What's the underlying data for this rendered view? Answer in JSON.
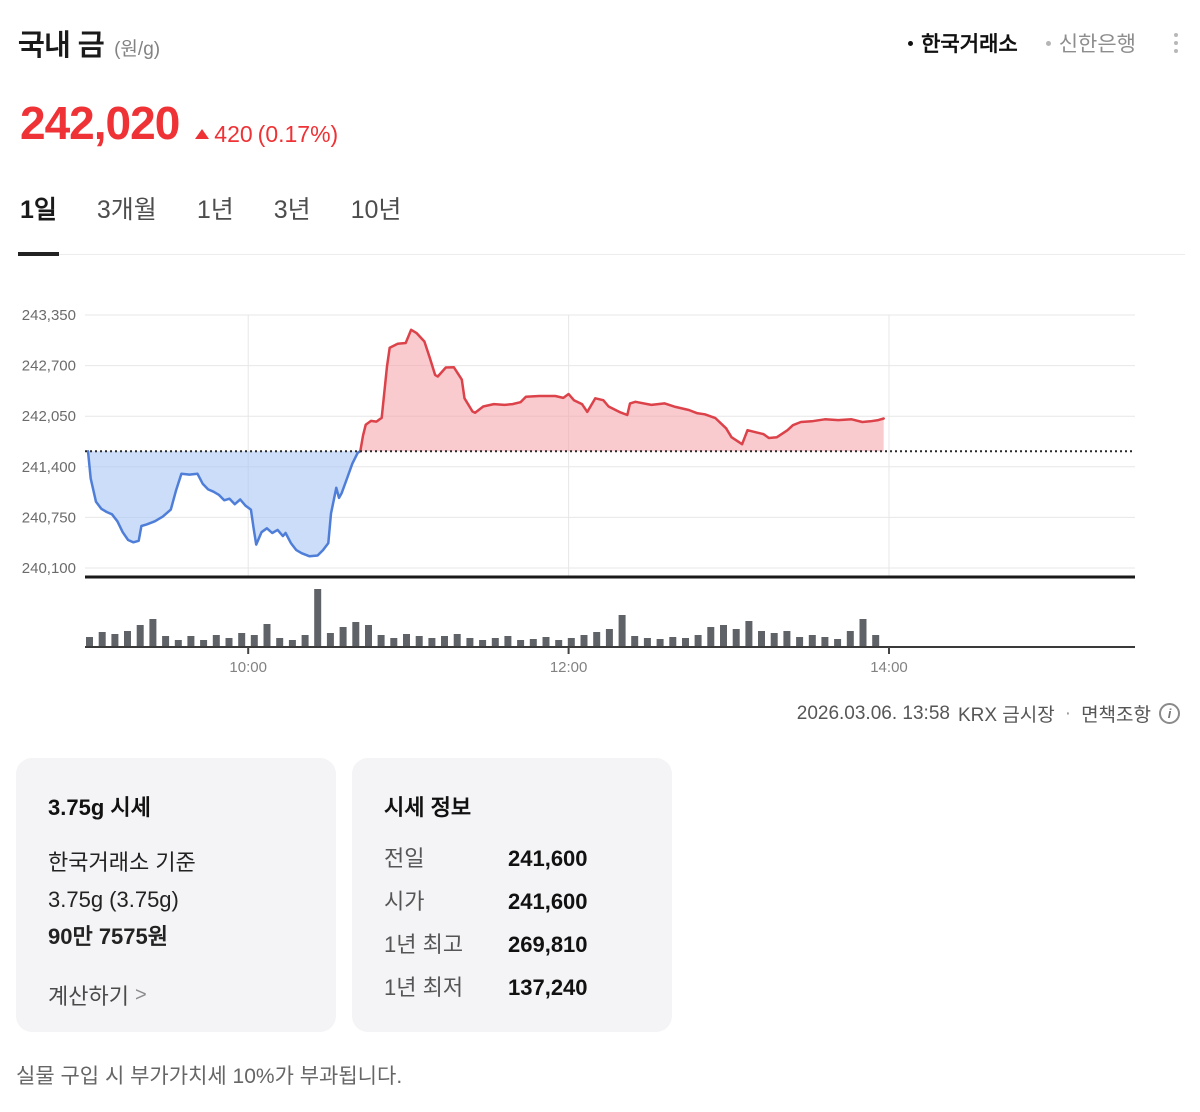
{
  "header": {
    "title": "국내 금",
    "unit": "(원/g)",
    "sources": [
      {
        "label": "한국거래소",
        "active": true
      },
      {
        "label": "신한은행",
        "active": false
      }
    ],
    "more_menu_icon": "kebab-vertical"
  },
  "price": {
    "value": "242,020",
    "direction_icon": "triangle-up",
    "change": "420",
    "change_pct": "(0.17%)"
  },
  "tabs": [
    {
      "label": "1일",
      "active": true
    },
    {
      "label": "3개월",
      "active": false
    },
    {
      "label": "1년",
      "active": false
    },
    {
      "label": "3년",
      "active": false
    },
    {
      "label": "10년",
      "active": false
    }
  ],
  "chart_data": {
    "type": "area",
    "title": "국내 금 1일 시세",
    "y_max": 243350,
    "y_min": 240100,
    "ref_value": 241600,
    "y_ticks": [
      {
        "label": "243,350",
        "value": 243350
      },
      {
        "label": "242,700",
        "value": 242700
      },
      {
        "label": "242,050",
        "value": 242050
      },
      {
        "label": "241,400",
        "value": 241400
      },
      {
        "label": "240,750",
        "value": 240750
      },
      {
        "label": "240,100",
        "value": 240100
      }
    ],
    "x_ticks": [
      {
        "label": "10:00",
        "m": 60
      },
      {
        "label": "12:00",
        "m": 180
      },
      {
        "label": "14:00",
        "m": 300
      }
    ],
    "x_unit": "minutes-from-09:00",
    "cross_index": 52,
    "price_series": [
      [
        0,
        241600
      ],
      [
        1,
        241250
      ],
      [
        3,
        240950
      ],
      [
        5,
        240860
      ],
      [
        7,
        240820
      ],
      [
        9,
        240790
      ],
      [
        11,
        240700
      ],
      [
        13,
        240560
      ],
      [
        15,
        240460
      ],
      [
        17,
        240430
      ],
      [
        19,
        240450
      ],
      [
        20,
        240640
      ],
      [
        22,
        240660
      ],
      [
        25,
        240700
      ],
      [
        28,
        240760
      ],
      [
        31,
        240850
      ],
      [
        33,
        241100
      ],
      [
        35,
        241310
      ],
      [
        38,
        241300
      ],
      [
        41,
        241310
      ],
      [
        43,
        241180
      ],
      [
        45,
        241110
      ],
      [
        47,
        241080
      ],
      [
        49,
        241040
      ],
      [
        51,
        240970
      ],
      [
        53,
        240990
      ],
      [
        55,
        240920
      ],
      [
        57,
        240980
      ],
      [
        59,
        240900
      ],
      [
        61,
        240850
      ],
      [
        62,
        240620
      ],
      [
        63,
        240400
      ],
      [
        65,
        240560
      ],
      [
        67,
        240610
      ],
      [
        69,
        240550
      ],
      [
        71,
        240590
      ],
      [
        73,
        240510
      ],
      [
        74,
        240550
      ],
      [
        76,
        240420
      ],
      [
        78,
        240330
      ],
      [
        80,
        240290
      ],
      [
        83,
        240250
      ],
      [
        86,
        240260
      ],
      [
        88,
        240330
      ],
      [
        90,
        240420
      ],
      [
        91,
        240800
      ],
      [
        93,
        241130
      ],
      [
        94,
        241000
      ],
      [
        95,
        241060
      ],
      [
        97,
        241250
      ],
      [
        99,
        241440
      ],
      [
        101,
        241580
      ],
      [
        102,
        241600
      ],
      [
        103,
        241800
      ],
      [
        104,
        241940
      ],
      [
        106,
        241990
      ],
      [
        108,
        241980
      ],
      [
        110,
        242030
      ],
      [
        112,
        242690
      ],
      [
        113,
        242930
      ],
      [
        116,
        242980
      ],
      [
        119,
        242990
      ],
      [
        121,
        243160
      ],
      [
        123,
        243120
      ],
      [
        126,
        243010
      ],
      [
        128,
        242800
      ],
      [
        130,
        242580
      ],
      [
        131,
        242560
      ],
      [
        134,
        242675
      ],
      [
        137,
        242680
      ],
      [
        140,
        242520
      ],
      [
        141,
        242280
      ],
      [
        144,
        242110
      ],
      [
        145,
        242095
      ],
      [
        148,
        242175
      ],
      [
        152,
        242205
      ],
      [
        156,
        242195
      ],
      [
        159,
        242205
      ],
      [
        162,
        242230
      ],
      [
        164,
        242300
      ],
      [
        169,
        242310
      ],
      [
        175,
        242310
      ],
      [
        178,
        242285
      ],
      [
        180,
        242335
      ],
      [
        182,
        242255
      ],
      [
        185,
        242205
      ],
      [
        187,
        242105
      ],
      [
        190,
        242280
      ],
      [
        193,
        242255
      ],
      [
        195,
        242175
      ],
      [
        199,
        242105
      ],
      [
        202,
        242065
      ],
      [
        203,
        242215
      ],
      [
        205,
        242235
      ],
      [
        211,
        242195
      ],
      [
        216,
        242215
      ],
      [
        220,
        242170
      ],
      [
        225,
        242130
      ],
      [
        228,
        242090
      ],
      [
        231,
        242075
      ],
      [
        235,
        242025
      ],
      [
        239,
        241895
      ],
      [
        241,
        241780
      ],
      [
        245,
        241690
      ],
      [
        247,
        241870
      ],
      [
        250,
        241845
      ],
      [
        253,
        241820
      ],
      [
        255,
        241770
      ],
      [
        258,
        241780
      ],
      [
        262,
        241870
      ],
      [
        264,
        241935
      ],
      [
        267,
        241975
      ],
      [
        271,
        241985
      ],
      [
        276,
        242010
      ],
      [
        281,
        242000
      ],
      [
        286,
        242010
      ],
      [
        290,
        241975
      ],
      [
        293,
        241985
      ],
      [
        296,
        242000
      ],
      [
        298,
        242020
      ]
    ],
    "volume_bars": [
      10,
      15,
      13,
      16,
      22,
      28,
      11,
      7,
      11,
      7,
      12,
      9,
      14,
      12,
      23,
      9,
      7,
      12,
      58,
      14,
      20,
      25,
      22,
      12,
      9,
      13,
      11,
      9,
      11,
      13,
      9,
      7,
      9,
      11,
      7,
      8,
      10,
      7,
      9,
      12,
      15,
      18,
      32,
      11,
      9,
      8,
      10,
      9,
      12,
      20,
      22,
      18,
      26,
      16,
      14,
      16,
      10,
      12,
      10,
      8,
      16,
      28,
      12
    ],
    "grid": true,
    "colors": {
      "up_line": "#dc4249",
      "up_fill": "rgba(244,160,168,0.55)",
      "down_line": "#4f7ed8",
      "down_fill": "rgba(168,198,243,0.6)",
      "grid": "#e7e7e7",
      "axis": "#1a1a1a",
      "ref_line": "#2b2b2b",
      "volume": "#5f6368",
      "vol_axis": "#3a3a3a"
    }
  },
  "meta": {
    "datetime": "2026.03.06. 13:58",
    "market": "KRX 금시장",
    "separator": "·",
    "disclaimer": "면책조항",
    "info_icon": "info-circle"
  },
  "cards": {
    "gram": {
      "title": "3.75g 시세",
      "line1": "한국거래소 기준",
      "line2": "3.75g (3.75g)",
      "line3": "90만 7575원",
      "link": "계산하기",
      "link_chevron": ">"
    },
    "quote": {
      "title": "시세 정보",
      "rows": [
        {
          "label": "전일",
          "value": "241,600"
        },
        {
          "label": "시가",
          "value": "241,600"
        },
        {
          "label": "1년 최고",
          "value": "269,810"
        },
        {
          "label": "1년 최저",
          "value": "137,240"
        }
      ]
    }
  },
  "footer": "실물 구입 시 부가가치세 10%가 부과됩니다."
}
